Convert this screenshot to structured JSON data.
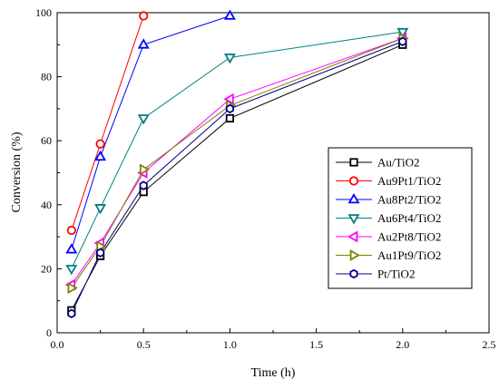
{
  "chart_data": {
    "type": "line",
    "xlabel": "Time (h)",
    "ylabel": "Conversion (%)",
    "xlim": [
      0,
      2.5
    ],
    "ylim": [
      0,
      100
    ],
    "xticks": [
      "0.0",
      "0.5",
      "1.0",
      "1.5",
      "2.0",
      "2.5"
    ],
    "yticks": [
      "0",
      "20",
      "40",
      "60",
      "80",
      "100"
    ],
    "grid": false,
    "legend_position": "right",
    "series": [
      {
        "name": "Au/TiO2",
        "color": "#000000",
        "marker": "square",
        "x": [
          0.083,
          0.25,
          0.5,
          1.0,
          2.0
        ],
        "y": [
          7,
          24,
          44,
          67,
          90
        ]
      },
      {
        "name": "Au9Pt1/TiO2",
        "color": "#ff0000",
        "marker": "circle",
        "x": [
          0.083,
          0.25,
          0.5
        ],
        "y": [
          32,
          59,
          99
        ]
      },
      {
        "name": "Au8Pt2/TiO2",
        "color": "#0000ff",
        "marker": "triangle-up",
        "x": [
          0.083,
          0.25,
          0.5,
          1.0
        ],
        "y": [
          26,
          55,
          90,
          99
        ]
      },
      {
        "name": "Au6Pt4/TiO2",
        "color": "#008080",
        "marker": "triangle-down",
        "x": [
          0.083,
          0.25,
          0.5,
          1.0,
          2.0
        ],
        "y": [
          20,
          39,
          67,
          86,
          94
        ]
      },
      {
        "name": "Au2Pt8/TiO2",
        "color": "#ff00ff",
        "marker": "triangle-left",
        "x": [
          0.083,
          0.25,
          0.5,
          1.0,
          2.0
        ],
        "y": [
          15,
          28,
          50,
          73,
          92
        ]
      },
      {
        "name": "Au1Pt9/TiO2",
        "color": "#808000",
        "marker": "triangle-right",
        "x": [
          0.083,
          0.25,
          0.5,
          1.0,
          2.0
        ],
        "y": [
          14,
          27,
          51,
          71,
          92
        ]
      },
      {
        "name": "Pt/TiO2",
        "color": "#000080",
        "marker": "hexagon",
        "x": [
          0.083,
          0.25,
          0.5,
          1.0,
          2.0
        ],
        "y": [
          6,
          25,
          46,
          70,
          91
        ]
      }
    ]
  }
}
